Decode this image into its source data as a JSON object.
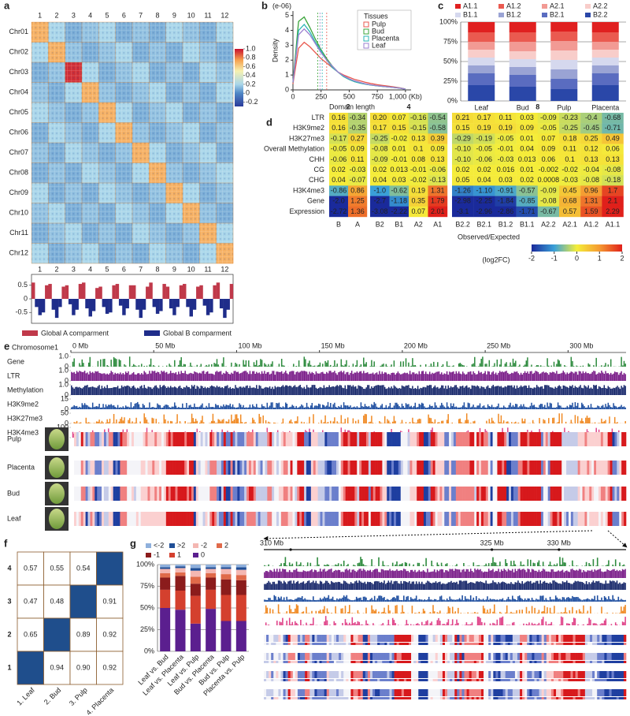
{
  "chart_data": [
    {
      "type": "heatmap",
      "panel": "a",
      "row_labels": [
        "Chr01",
        "Chr02",
        "Chr03",
        "Chr04",
        "Chr05",
        "Chr06",
        "Chr07",
        "Chr08",
        "Chr09",
        "Chr10",
        "Chr11",
        "Chr12"
      ],
      "col_labels": [
        "1",
        "2",
        "3",
        "4",
        "5",
        "6",
        "7",
        "8",
        "9",
        "10",
        "11",
        "12"
      ],
      "values": [
        [
          0.7,
          0.2,
          0.1,
          0.15,
          0.2,
          0.1,
          0.15,
          0.1,
          0.2,
          0.15,
          0.1,
          0.2
        ],
        [
          0.2,
          0.7,
          0.15,
          0.1,
          0.15,
          0.2,
          0.1,
          0.15,
          0.1,
          0.2,
          0.15,
          0.1
        ],
        [
          0.1,
          0.15,
          0.95,
          0.2,
          0.1,
          0.15,
          0.2,
          0.1,
          0.15,
          0.1,
          0.2,
          0.15
        ],
        [
          0.15,
          0.1,
          0.2,
          0.7,
          0.15,
          0.1,
          0.15,
          0.2,
          0.1,
          0.15,
          0.1,
          0.2
        ],
        [
          0.2,
          0.15,
          0.1,
          0.15,
          0.7,
          0.2,
          0.1,
          0.15,
          0.2,
          0.1,
          0.15,
          0.1
        ],
        [
          0.1,
          0.2,
          0.15,
          0.1,
          0.2,
          0.7,
          0.15,
          0.1,
          0.15,
          0.2,
          0.1,
          0.15
        ],
        [
          0.15,
          0.1,
          0.2,
          0.15,
          0.1,
          0.15,
          0.7,
          0.2,
          0.1,
          0.15,
          0.2,
          0.1
        ],
        [
          0.1,
          0.15,
          0.1,
          0.2,
          0.15,
          0.1,
          0.2,
          0.7,
          0.15,
          0.1,
          0.15,
          0.2
        ],
        [
          0.2,
          0.1,
          0.15,
          0.1,
          0.2,
          0.15,
          0.1,
          0.15,
          0.7,
          0.2,
          0.1,
          0.15
        ],
        [
          0.15,
          0.2,
          0.1,
          0.15,
          0.1,
          0.2,
          0.15,
          0.1,
          0.2,
          0.7,
          0.15,
          0.1
        ],
        [
          0.1,
          0.15,
          0.2,
          0.1,
          0.15,
          0.1,
          0.2,
          0.15,
          0.1,
          0.15,
          0.7,
          0.2
        ],
        [
          0.2,
          0.1,
          0.15,
          0.2,
          0.1,
          0.15,
          0.1,
          0.2,
          0.15,
          0.1,
          0.2,
          0.7
        ]
      ],
      "clim": [
        -0.3,
        1.0
      ],
      "colorbar_ticks": [
        {
          "value": 1,
          "label": "1.0"
        },
        0.8,
        0.6,
        0.4,
        0.2,
        0,
        -0.2
      ]
    },
    {
      "type": "compartment",
      "values": [
        0.6,
        -0.3,
        -0.6,
        -0.5,
        0.5,
        0.55,
        -0.4,
        -0.7,
        -0.3,
        0.45,
        0.5,
        -0.2,
        -0.6,
        -0.4,
        0.55,
        0.6,
        -0.35,
        -0.65,
        -0.45,
        0.4,
        0.45,
        -0.3,
        -0.55,
        -0.5,
        0.5,
        0.55,
        -0.25,
        -0.6,
        -0.35,
        0.5,
        0.5,
        -0.4,
        -0.7,
        -0.4,
        0.45,
        0.6,
        -0.3,
        -0.55,
        -0.45,
        0.55,
        0.45,
        -0.35,
        -0.6,
        -0.3,
        0.5,
        0.55,
        -0.3,
        -0.65,
        -0.4,
        0.45,
        0.5,
        -0.25,
        -0.6,
        -0.5,
        0.5,
        0.6,
        -0.35,
        -0.7,
        -0.4,
        0.55
      ],
      "ylim": [
        -0.9,
        0.9
      ],
      "yticks": [
        0.5,
        0,
        -0.5
      ],
      "legend": [
        {
          "name": "Global A comparment",
          "color": "#c0394a"
        },
        {
          "name": "Global B comparment",
          "color": "#1f2d8a"
        }
      ]
    },
    {
      "type": "line",
      "panel": "b",
      "unit": "(e-06)",
      "ylabel": "Density",
      "xlabel": "Domain length",
      "legend_title": "Tissues",
      "x": [
        0,
        50,
        100,
        150,
        200,
        250,
        300,
        350,
        400,
        450,
        500,
        550,
        600,
        650,
        700,
        750,
        800,
        850,
        900,
        950,
        1000
      ],
      "series": [
        {
          "name": "Pulp",
          "color": "#e8574d",
          "mean": 300,
          "values": [
            0.4,
            2.8,
            3.2,
            2.9,
            2.5,
            2.1,
            1.8,
            1.5,
            1.2,
            1.0,
            0.85,
            0.7,
            0.6,
            0.5,
            0.42,
            0.35,
            0.3,
            0.25,
            0.2,
            0.14,
            0.06
          ]
        },
        {
          "name": "Bud",
          "color": "#3aa43a",
          "mean": 220,
          "values": [
            0.5,
            4.6,
            4.9,
            4.2,
            3.4,
            2.7,
            2.1,
            1.6,
            1.2,
            0.9,
            0.7,
            0.55,
            0.45,
            0.38,
            0.32,
            0.27,
            0.23,
            0.2,
            0.16,
            0.12,
            0.05
          ]
        },
        {
          "name": "Placenta",
          "color": "#2bb5b5",
          "mean": 260,
          "values": [
            0.5,
            4.0,
            4.4,
            3.9,
            3.2,
            2.6,
            2.0,
            1.5,
            1.2,
            0.9,
            0.7,
            0.55,
            0.45,
            0.38,
            0.32,
            0.27,
            0.23,
            0.2,
            0.16,
            0.12,
            0.05
          ]
        },
        {
          "name": "Leaf",
          "color": "#9b7fd0",
          "mean": 240,
          "values": [
            0.5,
            3.7,
            4.1,
            3.7,
            3.1,
            2.5,
            2.0,
            1.6,
            1.2,
            0.95,
            0.75,
            0.6,
            0.5,
            0.4,
            0.33,
            0.28,
            0.24,
            0.2,
            0.16,
            0.12,
            0.05
          ]
        }
      ],
      "xlim": [
        0,
        1050
      ],
      "ylim": [
        0,
        5.3
      ],
      "xticks": [
        0,
        250,
        500,
        750,
        {
          "value": 1000,
          "label": "1,000 (Kb)"
        }
      ],
      "yticks": [
        0,
        1,
        2,
        3,
        4,
        5
      ]
    },
    {
      "type": "stacked_bar",
      "panel": "c",
      "categories": [
        "Leaf",
        "Bud",
        "Pulp",
        "Placenta"
      ],
      "series": [
        {
          "name": "A1.1",
          "color": "#e02020",
          "values": [
            13,
            13,
            12,
            13
          ]
        },
        {
          "name": "A1.2",
          "color": "#ea5a50",
          "values": [
            12,
            12,
            12,
            12
          ]
        },
        {
          "name": "A2.1",
          "color": "#f29a94",
          "values": [
            10,
            12,
            12,
            10
          ]
        },
        {
          "name": "A2.2",
          "color": "#f8cdca",
          "values": [
            10,
            10,
            12,
            10
          ]
        },
        {
          "name": "B1.1",
          "color": "#d5d8ee",
          "values": [
            10,
            10,
            12,
            10
          ]
        },
        {
          "name": "B1.2",
          "color": "#9aa3d4",
          "values": [
            10,
            10,
            12,
            10
          ]
        },
        {
          "name": "B2.1",
          "color": "#5a6cc0",
          "values": [
            15,
            15,
            13,
            15
          ]
        },
        {
          "name": "B2.2",
          "color": "#2a47a8",
          "values": [
            20,
            18,
            15,
            20
          ]
        }
      ],
      "ylim": [
        0,
        100
      ],
      "grid": true,
      "yticks": [
        {
          "value": 0,
          "label": "0%"
        },
        {
          "value": 25,
          "label": "25%"
        },
        {
          "value": 50,
          "label": "50%"
        },
        {
          "value": 75,
          "label": "75%"
        },
        {
          "value": 100,
          "label": "100%"
        }
      ]
    },
    {
      "type": "heatmap_table",
      "panel": "d",
      "row_labels": [
        "LTR",
        "H3K9me2",
        "H3K27me3",
        "Overall Methylation",
        "CHH",
        "CG",
        "CHG",
        "H3K4me3",
        "Gene",
        "Expression"
      ],
      "groups": [
        {
          "name": "2",
          "columns": [
            "B",
            "A"
          ],
          "values": [
            [
              "0.16",
              "-0.34"
            ],
            [
              "0.16",
              "-0.35"
            ],
            [
              "-0.17",
              "0.27"
            ],
            [
              "-0.05",
              "0.09"
            ],
            [
              "-0.06",
              "0.11"
            ],
            [
              "0.02",
              "-0.03"
            ],
            [
              "0.04",
              "-0.07"
            ],
            [
              "-0.86",
              "0.86"
            ],
            [
              "-2.0",
              "1.25"
            ],
            [
              "-2.72",
              "1.36"
            ]
          ]
        },
        {
          "name": "4",
          "columns": [
            "B2",
            "B1",
            "A2",
            "A1"
          ],
          "values": [
            [
              "0.20",
              "0.07",
              "-0.16",
              "-0.54"
            ],
            [
              "0.17",
              "0.15",
              "-0.15",
              "-0.58"
            ],
            [
              "-0.25",
              "-0.02",
              "0.13",
              "0.39"
            ],
            [
              "-0.08",
              "0.01",
              "0.1",
              "0.09"
            ],
            [
              "-0.09",
              "-0.01",
              "0.08",
              "0.13"
            ],
            [
              "0.02",
              "0.013",
              "-0.01",
              "-0.06"
            ],
            [
              "0.04",
              "0.03",
              "-0.02",
              "-0.13"
            ],
            [
              "-1.0",
              "-0.62",
              "0.19",
              "1.31"
            ],
            [
              "-2.7",
              "-1.18",
              "0.35",
              "1.79"
            ],
            [
              "-3.08",
              "-2.22",
              "0.07",
              "2.01"
            ]
          ]
        },
        {
          "name": "8",
          "columns": [
            "B2.2",
            "B2.1",
            "B1.2",
            "B1.1",
            "A2.2",
            "A2.1",
            "A1.2",
            "A1.1"
          ],
          "values": [
            [
              "0.21",
              "0.17",
              "0.11",
              "0.03",
              "-0.09",
              "-0.23",
              "-0.4",
              "-0.68"
            ],
            [
              "0.15",
              "0.19",
              "0.19",
              "0.09",
              "-0.05",
              "-0.25",
              "-0.45",
              "-0.71"
            ],
            [
              "-0.29",
              "-0.19",
              "-0.05",
              "0.01",
              "0.07",
              "0.18",
              "0.25",
              "0.49"
            ],
            [
              "-0.10",
              "-0.05",
              "-0.01",
              "0.04",
              "0.09",
              "0.11",
              "0.12",
              "0.06"
            ],
            [
              "-0.10",
              "-0.06",
              "-0.03",
              "0.013",
              "0.06",
              "0.1",
              "0.13",
              "0.13"
            ],
            [
              "0.02",
              "0.02",
              "0.016",
              "0.01",
              "-0.002",
              "-0.02",
              "-0.04",
              "-0.08"
            ],
            [
              "0.05",
              "0.04",
              "0.03",
              "0.02",
              "0.0008",
              "-0.03",
              "-0.08",
              "-0.18"
            ],
            [
              "-1.26",
              "-1.10",
              "-0.91",
              "-0.57",
              "-0.09",
              "0.45",
              "0.96",
              "1.7"
            ],
            [
              "-2.98",
              "-2.25",
              "-1.84",
              "-0.85",
              "-0.08",
              "0.68",
              "1.31",
              "2.1"
            ],
            [
              "-3.1",
              "-2.96",
              "-2.86",
              "-1.71",
              "-0.67",
              "0.57",
              "1.59",
              "2.29"
            ]
          ]
        }
      ],
      "colorbar_label": "Observed/Expected",
      "colorbar_unit": "(log2FC)",
      "clim": [
        -2,
        2
      ],
      "colorbar_ticks": [
        -2,
        -1,
        0,
        1,
        2
      ]
    },
    {
      "type": "genome_browser",
      "panel": "e",
      "title": "Chromosome1",
      "xlim": [
        0,
        335
      ],
      "xticks": [
        {
          "value": 0,
          "label": "0 Mb"
        },
        {
          "value": 50,
          "label": "50 Mb"
        },
        {
          "value": 100,
          "label": "100 Mb"
        },
        {
          "value": 150,
          "label": "150 Mb"
        },
        {
          "value": 200,
          "label": "200 Mb"
        },
        {
          "value": 250,
          "label": "250 Mb"
        },
        {
          "value": 300,
          "label": "300 Mb"
        }
      ],
      "tracks": [
        {
          "name": "Gene",
          "color": "#2e8b3e",
          "ylim": [
            0,
            1
          ],
          "yticks": [
            {
              "value": 1,
              "label": "1.0"
            },
            0
          ]
        },
        {
          "name": "LTR",
          "color": "#7b1f8a",
          "ylim": [
            0,
            1
          ],
          "yticks": [
            {
              "value": 1,
              "label": "1.0"
            },
            0
          ]
        },
        {
          "name": "Methylation",
          "color": "#1a2a6c",
          "ylim": [
            0,
            1
          ],
          "yticks": [
            {
              "value": 1,
              "label": "1.0"
            },
            0
          ]
        },
        {
          "name": "H3K9me2",
          "color": "#1f4fa0",
          "ylim": [
            0,
            15
          ],
          "yticks": [
            15,
            0
          ]
        },
        {
          "name": "H3K27me3",
          "color": "#f08a24",
          "ylim": [
            0,
            50
          ],
          "yticks": [
            50,
            0
          ]
        },
        {
          "name": "H3K4me3",
          "color": "#e0458a",
          "ylim": [
            0,
            100
          ],
          "yticks": [
            100,
            0
          ]
        }
      ],
      "tissues": [
        "Pulp",
        "Placenta",
        "Bud",
        "Leaf"
      ]
    },
    {
      "type": "matrix",
      "panel": "f",
      "row_labels": [
        "4",
        "3",
        "2",
        "1"
      ],
      "col_labels": [
        "1. Leaf",
        "2. Bud",
        "3. Pulp",
        "4. Placenta"
      ],
      "values": [
        [
          "0.57",
          "0.55",
          "0.54",
          null
        ],
        [
          "0.47",
          "0.48",
          null,
          "0.91"
        ],
        [
          "0.65",
          null,
          "0.89",
          "0.92"
        ],
        [
          null,
          "0.94",
          "0.90",
          "0.92"
        ]
      ],
      "diagonal_color": "#1f4e8c"
    },
    {
      "type": "stacked_bar",
      "panel": "g",
      "categories": [
        "Leaf vs. Bud",
        "Leaf vs. Placenta",
        "Leaf vs. Pulp",
        "Bud vs. Placenta",
        "Bud vs. Pulp",
        "Placenta vs. Pulp"
      ],
      "series": [
        {
          "name": "<-2",
          "color": "#8fb0dc",
          "values": [
            3,
            2,
            4,
            3,
            3,
            3
          ]
        },
        {
          "name": ">2",
          "color": "#1f4e96",
          "values": [
            2,
            2,
            3,
            2,
            2,
            3
          ]
        },
        {
          "name": "-2",
          "color": "#f4b7b2",
          "values": [
            5,
            5,
            7,
            5,
            6,
            6
          ]
        },
        {
          "name": "2",
          "color": "#e06a4a",
          "values": [
            5,
            4,
            8,
            5,
            6,
            6
          ]
        },
        {
          "name": "-1",
          "color": "#8b1c1c",
          "values": [
            14,
            17,
            14,
            14,
            18,
            17
          ]
        },
        {
          "name": "1",
          "color": "#d4402e",
          "values": [
            21,
            22,
            32,
            22,
            30,
            30
          ]
        },
        {
          "name": "0",
          "color": "#5b1f8f",
          "values": [
            50,
            48,
            32,
            49,
            35,
            35
          ]
        }
      ],
      "ylim": [
        0,
        100
      ],
      "grid": true,
      "yticks": [
        {
          "value": 0,
          "label": "0%"
        },
        {
          "value": 25,
          "label": "25%"
        },
        {
          "value": 50,
          "label": "50%"
        },
        {
          "value": 75,
          "label": "75%"
        },
        {
          "value": 100,
          "label": "100%"
        }
      ]
    },
    {
      "type": "genome_zoom",
      "xlim": [
        308,
        335
      ],
      "xticks": [
        {
          "value": 310,
          "label": "310 Mb"
        },
        {
          "value": 325,
          "label": "325 Mb"
        },
        {
          "value": 330,
          "label": "330 Mb"
        }
      ]
    }
  ]
}
